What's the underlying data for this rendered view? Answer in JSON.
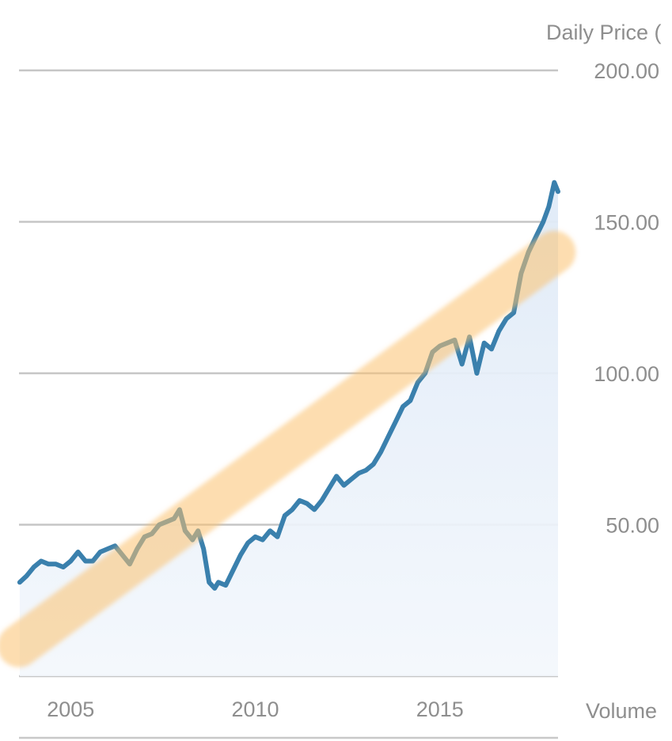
{
  "chart_data": {
    "type": "line",
    "title": "",
    "ylabel": "Daily Price (",
    "secondary_label": "Volume",
    "xlim": [
      2003.6,
      2018.2
    ],
    "ylim": [
      0,
      200
    ],
    "x_ticks": [
      {
        "value": 2005,
        "label": "2005"
      },
      {
        "value": 2010,
        "label": "2010"
      },
      {
        "value": 2015,
        "label": "2015"
      }
    ],
    "y_ticks": [
      {
        "value": 50,
        "label": "50.00"
      },
      {
        "value": 100,
        "label": "100.00"
      },
      {
        "value": 150,
        "label": "150.00"
      },
      {
        "value": 200,
        "label": "200.00"
      }
    ],
    "gridlines": true,
    "series": [
      {
        "color": "#3a80ad",
        "x": [
          2003.62,
          2003.8,
          2004.0,
          2004.2,
          2004.4,
          2004.6,
          2004.8,
          2005.0,
          2005.2,
          2005.4,
          2005.6,
          2005.8,
          2006.0,
          2006.2,
          2006.4,
          2006.6,
          2006.8,
          2007.0,
          2007.2,
          2007.4,
          2007.6,
          2007.8,
          2007.95,
          2008.1,
          2008.3,
          2008.45,
          2008.6,
          2008.75,
          2008.9,
          2009.0,
          2009.2,
          2009.4,
          2009.6,
          2009.8,
          2010.0,
          2010.2,
          2010.4,
          2010.6,
          2010.8,
          2011.0,
          2011.2,
          2011.4,
          2011.6,
          2011.8,
          2012.0,
          2012.2,
          2012.4,
          2012.6,
          2012.8,
          2013.0,
          2013.2,
          2013.4,
          2013.6,
          2013.8,
          2014.0,
          2014.2,
          2014.4,
          2014.6,
          2014.8,
          2015.0,
          2015.2,
          2015.4,
          2015.6,
          2015.8,
          2016.0,
          2016.2,
          2016.4,
          2016.6,
          2016.8,
          2017.0,
          2017.2,
          2017.4,
          2017.6,
          2017.8,
          2017.95,
          2018.1,
          2018.2
        ],
        "values": [
          31,
          33,
          36,
          38,
          37,
          37,
          36,
          38,
          41,
          38,
          38,
          41,
          42,
          43,
          40,
          37,
          42,
          46,
          47,
          50,
          51,
          52,
          55,
          48,
          45,
          48,
          42,
          31,
          29,
          31,
          30,
          35,
          40,
          44,
          46,
          45,
          48,
          46,
          53,
          55,
          58,
          57,
          55,
          58,
          62,
          66,
          63,
          65,
          67,
          68,
          70,
          74,
          79,
          84,
          89,
          91,
          97,
          100,
          107,
          109,
          110,
          111,
          103,
          112,
          100,
          110,
          108,
          114,
          118,
          120,
          133,
          140,
          145,
          150,
          155,
          163,
          160
        ]
      }
    ],
    "trend_band": {
      "color": "#fbc16f",
      "x": [
        2003.6,
        2018.1
      ],
      "values": [
        10,
        140
      ]
    },
    "area_fill_color": "#e6f0fa"
  }
}
